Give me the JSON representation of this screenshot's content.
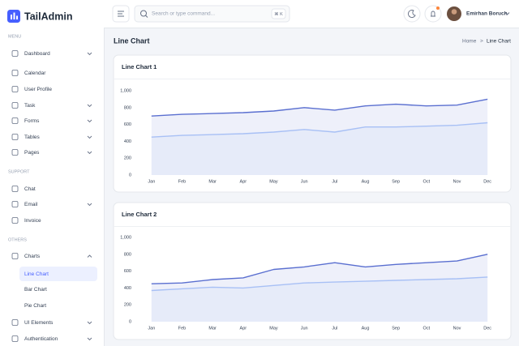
{
  "sidebar": {
    "logo": "TailAdmin",
    "sections": [
      {
        "title": "MENU",
        "items": [
          {
            "label": "Dashboard",
            "submenu": true
          },
          {
            "label": "Calendar"
          },
          {
            "label": "User Profile"
          },
          {
            "label": "Task",
            "submenu": true
          },
          {
            "label": "Forms",
            "submenu": true
          },
          {
            "label": "Tables",
            "submenu": true
          },
          {
            "label": "Pages",
            "submenu": true
          }
        ]
      },
      {
        "title": "SUPPORT",
        "items": [
          {
            "label": "Chat"
          },
          {
            "label": "Email",
            "submenu": true
          },
          {
            "label": "Invoice"
          }
        ]
      },
      {
        "title": "OTHERS",
        "items": [
          {
            "label": "Charts",
            "submenu": true,
            "open": true,
            "children": [
              {
                "label": "Line Chart",
                "active": true
              },
              {
                "label": "Bar Chart"
              },
              {
                "label": "Pie Chart"
              }
            ]
          },
          {
            "label": "UI Elements",
            "submenu": true
          },
          {
            "label": "Authentication",
            "submenu": true
          }
        ]
      }
    ]
  },
  "header": {
    "search_placeholder": "Search or type command...",
    "shortcut": "⌘ K",
    "user": "Emirhan Boruch"
  },
  "page": {
    "title": "Line Chart",
    "breadcrumb": [
      "Home",
      ">",
      "Line Chart"
    ]
  },
  "chart_data": [
    {
      "type": "line",
      "title": "Line Chart 1",
      "categories": [
        "Jan",
        "Feb",
        "Mar",
        "Apr",
        "May",
        "Jun",
        "Jul",
        "Aug",
        "Sep",
        "Oct",
        "Nov",
        "Dec"
      ],
      "series": [
        {
          "color": "#5a6fd0",
          "values": [
            700,
            720,
            730,
            740,
            760,
            800,
            770,
            820,
            840,
            820,
            830,
            900
          ]
        },
        {
          "color": "#a8c0f5",
          "values": [
            450,
            470,
            480,
            490,
            510,
            540,
            510,
            570,
            570,
            580,
            590,
            620
          ]
        }
      ],
      "ylim": [
        0,
        1000
      ],
      "yticks": [
        0,
        200,
        400,
        600,
        800,
        {
          "value": 1000,
          "label": "1,000"
        }
      ],
      "grid": false
    },
    {
      "type": "line",
      "title": "Line Chart 2",
      "categories": [
        "Jan",
        "Feb",
        "Mar",
        "Apr",
        "May",
        "Jun",
        "Jul",
        "Aug",
        "Sep",
        "Oct",
        "Nov",
        "Dec"
      ],
      "series": [
        {
          "color": "#5a6fd0",
          "values": [
            450,
            460,
            500,
            520,
            620,
            650,
            700,
            650,
            680,
            700,
            720,
            800
          ]
        },
        {
          "color": "#a8c0f5",
          "values": [
            370,
            390,
            410,
            400,
            430,
            460,
            470,
            480,
            490,
            500,
            510,
            530
          ]
        }
      ],
      "ylim": [
        0,
        1000
      ],
      "yticks": [
        0,
        200,
        400,
        600,
        800,
        {
          "value": 1000,
          "label": "1,000"
        }
      ],
      "grid": false
    }
  ]
}
